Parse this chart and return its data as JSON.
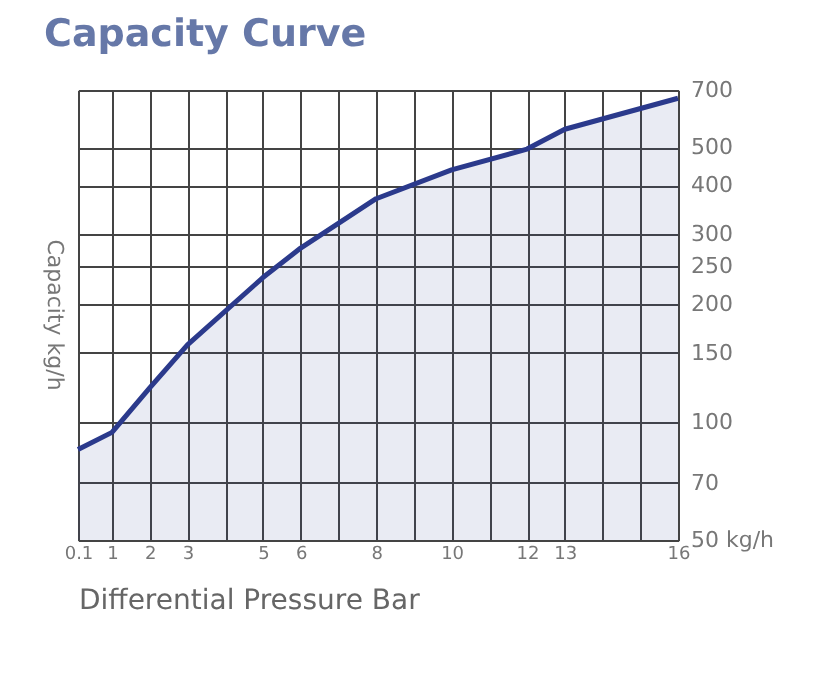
{
  "chart_data": {
    "type": "area",
    "title": "Capacity Curve",
    "xlabel": "Differential Pressure  Bar",
    "ylabel": "Capacity kg/h",
    "x": [
      0.1,
      1,
      2,
      3,
      5,
      6,
      8,
      10,
      12,
      13,
      16
    ],
    "series": [
      {
        "color": "#2b3a8c",
        "values": [
          85,
          94,
          122,
          157,
          233,
          277,
          370,
          438,
          495,
          556,
          667
        ]
      }
    ],
    "xlim": [
      0.1,
      16
    ],
    "xticks": [
      0.1,
      1,
      2,
      3,
      {
        "value": 4,
        "label": null
      },
      5,
      6,
      {
        "value": 7,
        "label": null
      },
      8,
      {
        "value": 9,
        "label": null
      },
      10,
      {
        "value": 11,
        "label": null
      },
      12,
      13,
      {
        "value": 14,
        "label": null
      },
      {
        "value": 15,
        "label": null
      },
      16
    ],
    "ylim": [
      50,
      700
    ],
    "yticks": [
      {
        "value": 50,
        "label": "50 kg/h"
      },
      70,
      100,
      150,
      200,
      250,
      300,
      400,
      500,
      700
    ],
    "log": "y",
    "grid": true
  }
}
